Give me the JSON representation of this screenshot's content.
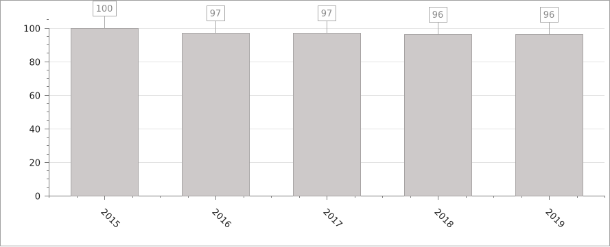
{
  "chart_data": {
    "type": "bar",
    "title": "",
    "xlabel": "",
    "ylabel": "",
    "categories": [
      "2015",
      "2016",
      "2017",
      "2018",
      "2019"
    ],
    "series": [
      {
        "values": [
          100,
          97,
          97,
          96,
          96
        ]
      }
    ],
    "data_labels": [
      "100",
      "97",
      "97",
      "96",
      "96"
    ],
    "ylim": [
      0,
      110
    ],
    "yticks": [
      0,
      20,
      40,
      60,
      80,
      100
    ],
    "ytick_labels": [
      "0",
      "20",
      "40",
      "60",
      "80",
      "100"
    ],
    "grid": true,
    "legend": false,
    "x_tick_rotation": "45deg",
    "colors": {
      "bar_fill": "#cdc9c9",
      "bar_stroke": "#a6a3a3",
      "grid": "#e3e3e3",
      "axis": "#7a7a7a",
      "label_border": "#a9a9a9",
      "label_text": "#8a8a8a"
    }
  }
}
